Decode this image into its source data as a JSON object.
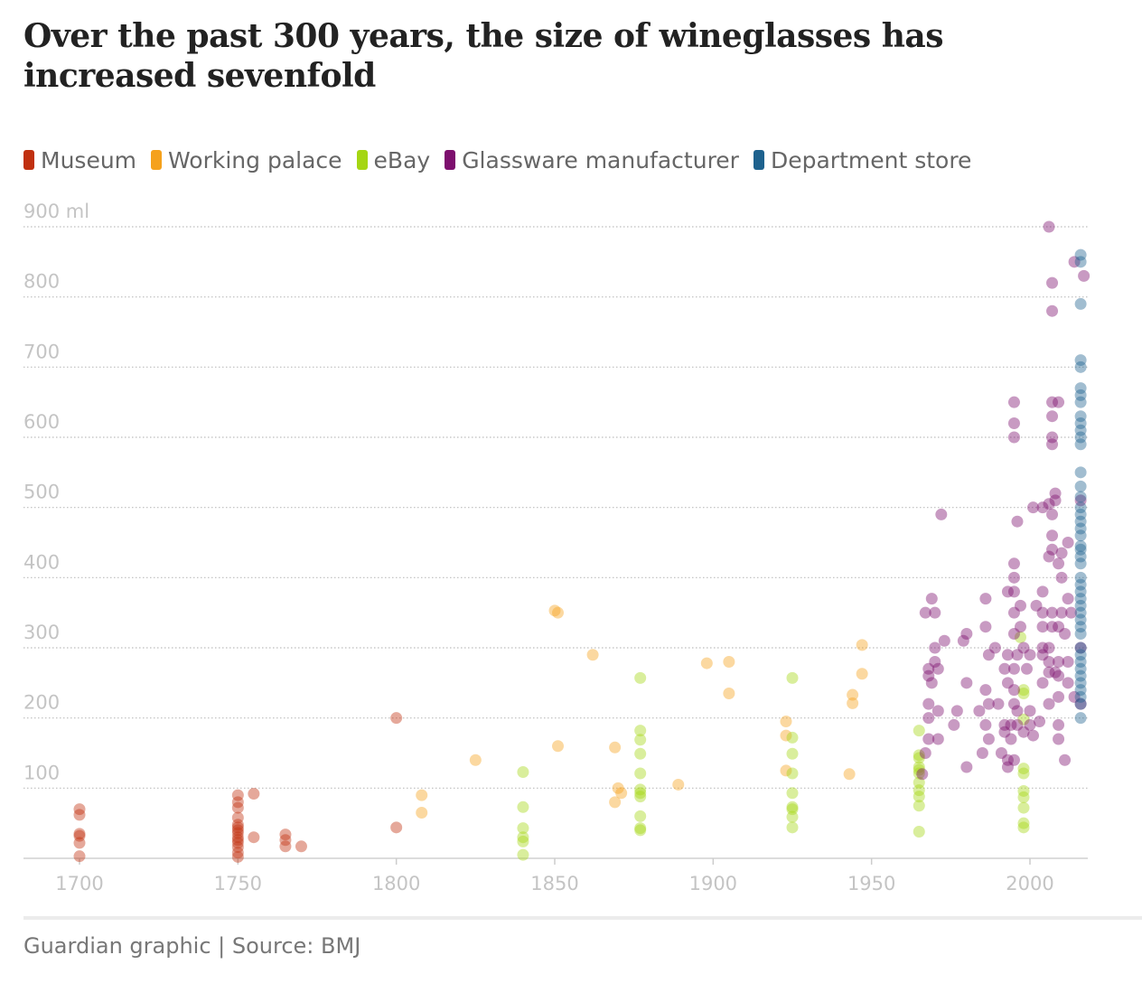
{
  "title": "Over the past 300 years, the size of wineglasses has increased sevenfold",
  "source": "Guardian graphic | Source: BMJ",
  "legend": [
    {
      "label": "Museum",
      "color": "#c0300f"
    },
    {
      "label": "Working palace",
      "color": "#f5a11c"
    },
    {
      "label": "eBay",
      "color": "#a5d613"
    },
    {
      "label": "Glassware manufacturer",
      "color": "#7d0f6e"
    },
    {
      "label": "Department store",
      "color": "#1e628e"
    }
  ],
  "chart_data": {
    "type": "scatter",
    "title": "Over the past 300 years, the size of wineglasses has increased sevenfold",
    "xlabel": "",
    "ylabel": "",
    "xlim": [
      1690,
      2020
    ],
    "ylim": [
      0,
      900
    ],
    "x_ticks": [
      "1700",
      "1750",
      "1800",
      "1850",
      "1900",
      "1950",
      "2000"
    ],
    "y_ticks": [
      "100",
      "200",
      "300",
      "400",
      "500",
      "600",
      "700",
      "800",
      "900 ml"
    ],
    "y_tick_values": [
      100,
      200,
      300,
      400,
      500,
      600,
      700,
      800,
      900
    ],
    "x_tick_values": [
      1700,
      1750,
      1800,
      1850,
      1900,
      1950,
      2000
    ],
    "grid": "horizontal dotted",
    "legend_position": "top-left",
    "series": [
      {
        "name": "Museum",
        "color": "#c0300f",
        "points": [
          [
            1700,
            70
          ],
          [
            1700,
            62
          ],
          [
            1700,
            35
          ],
          [
            1700,
            32
          ],
          [
            1700,
            22
          ],
          [
            1700,
            3
          ],
          [
            1750,
            90
          ],
          [
            1750,
            80
          ],
          [
            1750,
            72
          ],
          [
            1750,
            58
          ],
          [
            1750,
            48
          ],
          [
            1750,
            44
          ],
          [
            1750,
            40
          ],
          [
            1750,
            36
          ],
          [
            1750,
            30
          ],
          [
            1750,
            26
          ],
          [
            1750,
            22
          ],
          [
            1750,
            16
          ],
          [
            1750,
            8
          ],
          [
            1750,
            2
          ],
          [
            1755,
            92
          ],
          [
            1755,
            30
          ],
          [
            1765,
            34
          ],
          [
            1765,
            26
          ],
          [
            1765,
            17
          ],
          [
            1770,
            17
          ],
          [
            1800,
            200
          ],
          [
            1800,
            44
          ]
        ]
      },
      {
        "name": "Working palace",
        "color": "#f5a11c",
        "points": [
          [
            1808,
            90
          ],
          [
            1808,
            65
          ],
          [
            1825,
            140
          ],
          [
            1850,
            353
          ],
          [
            1851,
            350
          ],
          [
            1851,
            160
          ],
          [
            1862,
            290
          ],
          [
            1869,
            158
          ],
          [
            1869,
            80
          ],
          [
            1870,
            100
          ],
          [
            1871,
            93
          ],
          [
            1889,
            105
          ],
          [
            1898,
            278
          ],
          [
            1905,
            280
          ],
          [
            1905,
            235
          ],
          [
            1923,
            195
          ],
          [
            1923,
            175
          ],
          [
            1923,
            125
          ],
          [
            1943,
            120
          ],
          [
            1944,
            233
          ],
          [
            1944,
            221
          ],
          [
            1947,
            304
          ],
          [
            1947,
            263
          ]
        ]
      },
      {
        "name": "eBay",
        "color": "#a5d613",
        "points": [
          [
            1840,
            123
          ],
          [
            1840,
            73
          ],
          [
            1840,
            43
          ],
          [
            1840,
            30
          ],
          [
            1840,
            24
          ],
          [
            1840,
            5
          ],
          [
            1877,
            257
          ],
          [
            1877,
            182
          ],
          [
            1877,
            169
          ],
          [
            1877,
            149
          ],
          [
            1877,
            121
          ],
          [
            1877,
            98
          ],
          [
            1877,
            93
          ],
          [
            1877,
            88
          ],
          [
            1877,
            60
          ],
          [
            1877,
            43
          ],
          [
            1877,
            40
          ],
          [
            1925,
            257
          ],
          [
            1925,
            172
          ],
          [
            1925,
            149
          ],
          [
            1925,
            121
          ],
          [
            1925,
            93
          ],
          [
            1925,
            73
          ],
          [
            1925,
            70
          ],
          [
            1925,
            59
          ],
          [
            1925,
            44
          ],
          [
            1965,
            182
          ],
          [
            1965,
            147
          ],
          [
            1965,
            143
          ],
          [
            1965,
            130
          ],
          [
            1965,
            126
          ],
          [
            1965,
            121
          ],
          [
            1965,
            108
          ],
          [
            1965,
            97
          ],
          [
            1965,
            88
          ],
          [
            1965,
            75
          ],
          [
            1965,
            38
          ],
          [
            1997,
            315
          ],
          [
            1998,
            240
          ],
          [
            1998,
            235
          ],
          [
            1998,
            198
          ],
          [
            1998,
            128
          ],
          [
            1998,
            121
          ],
          [
            1998,
            96
          ],
          [
            1998,
            87
          ],
          [
            1998,
            72
          ],
          [
            1998,
            50
          ],
          [
            1998,
            44
          ]
        ]
      },
      {
        "name": "Glassware manufacturer",
        "color": "#7d0f6e",
        "points": [
          [
            2006,
            900
          ],
          [
            2007,
            820
          ],
          [
            2007,
            780
          ],
          [
            2014,
            850
          ],
          [
            2017,
            830
          ],
          [
            1995,
            650
          ],
          [
            1995,
            620
          ],
          [
            1995,
            600
          ],
          [
            2007,
            650
          ],
          [
            2007,
            630
          ],
          [
            2007,
            600
          ],
          [
            2007,
            590
          ],
          [
            2009,
            650
          ],
          [
            2006,
            505
          ],
          [
            2008,
            520
          ],
          [
            2008,
            510
          ],
          [
            2001,
            500
          ],
          [
            2004,
            500
          ],
          [
            2007,
            490
          ],
          [
            2016,
            510
          ],
          [
            1972,
            490
          ],
          [
            1996,
            480
          ],
          [
            2007,
            460
          ],
          [
            2012,
            450
          ],
          [
            2007,
            440
          ],
          [
            2006,
            430
          ],
          [
            2010,
            435
          ],
          [
            2009,
            420
          ],
          [
            2010,
            400
          ],
          [
            1995,
            420
          ],
          [
            1995,
            400
          ],
          [
            1995,
            380
          ],
          [
            1993,
            380
          ],
          [
            2004,
            380
          ],
          [
            2002,
            360
          ],
          [
            1997,
            360
          ],
          [
            1969,
            370
          ],
          [
            1986,
            370
          ],
          [
            2012,
            370
          ],
          [
            2004,
            350
          ],
          [
            2007,
            350
          ],
          [
            2010,
            350
          ],
          [
            2013,
            350
          ],
          [
            1967,
            350
          ],
          [
            1970,
            350
          ],
          [
            1995,
            350
          ],
          [
            1997,
            330
          ],
          [
            2004,
            330
          ],
          [
            2007,
            330
          ],
          [
            2009,
            330
          ],
          [
            2011,
            320
          ],
          [
            1986,
            330
          ],
          [
            1980,
            320
          ],
          [
            1995,
            320
          ],
          [
            1970,
            300
          ],
          [
            1973,
            310
          ],
          [
            1979,
            310
          ],
          [
            1989,
            300
          ],
          [
            1998,
            300
          ],
          [
            2004,
            300
          ],
          [
            2006,
            300
          ],
          [
            2016,
            300
          ],
          [
            1970,
            280
          ],
          [
            1987,
            290
          ],
          [
            1993,
            290
          ],
          [
            1996,
            290
          ],
          [
            2000,
            290
          ],
          [
            2004,
            290
          ],
          [
            2006,
            280
          ],
          [
            2009,
            280
          ],
          [
            2012,
            280
          ],
          [
            1968,
            270
          ],
          [
            1971,
            270
          ],
          [
            1992,
            270
          ],
          [
            1995,
            270
          ],
          [
            1999,
            270
          ],
          [
            2006,
            265
          ],
          [
            2008,
            265
          ],
          [
            1968,
            260
          ],
          [
            1969,
            250
          ],
          [
            1980,
            250
          ],
          [
            1986,
            240
          ],
          [
            1993,
            250
          ],
          [
            1995,
            240
          ],
          [
            2004,
            250
          ],
          [
            2009,
            260
          ],
          [
            2012,
            250
          ],
          [
            2014,
            230
          ],
          [
            2016,
            220
          ],
          [
            1968,
            220
          ],
          [
            1971,
            210
          ],
          [
            1977,
            210
          ],
          [
            1984,
            210
          ],
          [
            1987,
            220
          ],
          [
            1990,
            220
          ],
          [
            1995,
            220
          ],
          [
            1996,
            210
          ],
          [
            2000,
            210
          ],
          [
            2006,
            220
          ],
          [
            2009,
            230
          ],
          [
            1968,
            200
          ],
          [
            1976,
            190
          ],
          [
            1986,
            190
          ],
          [
            1992,
            190
          ],
          [
            1994,
            190
          ],
          [
            1996,
            190
          ],
          [
            2000,
            190
          ],
          [
            2003,
            195
          ],
          [
            2009,
            190
          ],
          [
            1968,
            170
          ],
          [
            1971,
            170
          ],
          [
            1987,
            170
          ],
          [
            1992,
            180
          ],
          [
            1994,
            170
          ],
          [
            1998,
            180
          ],
          [
            2001,
            175
          ],
          [
            2009,
            170
          ],
          [
            1967,
            150
          ],
          [
            1985,
            150
          ],
          [
            1991,
            150
          ],
          [
            1993,
            140
          ],
          [
            1995,
            140
          ],
          [
            2011,
            140
          ],
          [
            1966,
            120
          ],
          [
            1980,
            130
          ],
          [
            1993,
            130
          ]
        ]
      },
      {
        "name": "Department store",
        "color": "#1e628e",
        "points": [
          [
            2016,
            860
          ],
          [
            2016,
            850
          ],
          [
            2016,
            790
          ],
          [
            2016,
            710
          ],
          [
            2016,
            700
          ],
          [
            2016,
            670
          ],
          [
            2016,
            660
          ],
          [
            2016,
            650
          ],
          [
            2016,
            630
          ],
          [
            2016,
            620
          ],
          [
            2016,
            610
          ],
          [
            2016,
            600
          ],
          [
            2016,
            590
          ],
          [
            2016,
            550
          ],
          [
            2016,
            530
          ],
          [
            2016,
            515
          ],
          [
            2016,
            500
          ],
          [
            2016,
            490
          ],
          [
            2016,
            480
          ],
          [
            2016,
            470
          ],
          [
            2016,
            460
          ],
          [
            2016,
            445
          ],
          [
            2016,
            440
          ],
          [
            2016,
            430
          ],
          [
            2016,
            420
          ],
          [
            2016,
            400
          ],
          [
            2016,
            390
          ],
          [
            2016,
            380
          ],
          [
            2016,
            370
          ],
          [
            2016,
            360
          ],
          [
            2016,
            350
          ],
          [
            2016,
            340
          ],
          [
            2016,
            330
          ],
          [
            2016,
            320
          ],
          [
            2016,
            300
          ],
          [
            2016,
            290
          ],
          [
            2016,
            280
          ],
          [
            2016,
            270
          ],
          [
            2016,
            260
          ],
          [
            2016,
            250
          ],
          [
            2016,
            240
          ],
          [
            2016,
            230
          ],
          [
            2016,
            220
          ],
          [
            2016,
            200
          ]
        ]
      }
    ]
  }
}
